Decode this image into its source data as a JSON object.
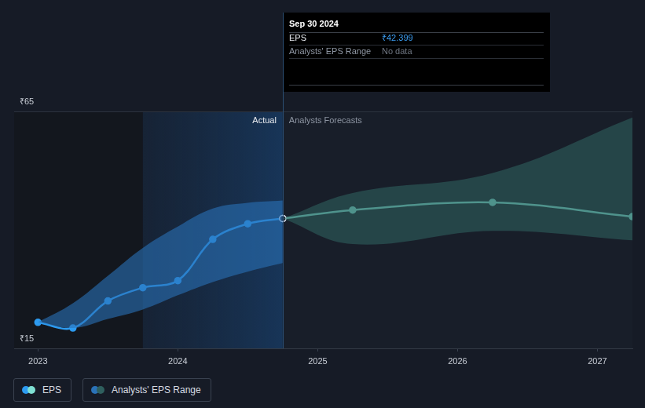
{
  "chart_data": {
    "type": "line",
    "xlim": [
      2022.83,
      2027.25
    ],
    "xticks": [
      2023,
      2024,
      2025,
      2026,
      2027
    ],
    "ylim": [
      15,
      65
    ],
    "yticks": [
      {
        "value": 15,
        "label": "₹15"
      },
      {
        "value": 65,
        "label": "₹65"
      }
    ],
    "grid": true,
    "legend": "bottom",
    "series": [
      {
        "name": "Analysts' EPS Range",
        "type": "range",
        "color": "#2a72b8",
        "x": [
          2023,
          2023.25,
          2023.5,
          2023.75,
          2024,
          2024.25,
          2024.5,
          2024.75
        ],
        "low": [
          20.5,
          19.3,
          21.2,
          23.2,
          26.2,
          29,
          31.2,
          33
        ],
        "high": [
          20.5,
          24.5,
          30.3,
          36.2,
          40.7,
          44.5,
          45.7,
          46.2
        ]
      },
      {
        "name": "Analysts' EPS Range",
        "type": "range",
        "color": "#2f5f5e",
        "x": [
          2024.75,
          2025.25,
          2026.25,
          2027.25
        ],
        "low": [
          42.399,
          37,
          39.8,
          37.8
        ],
        "high": [
          42.399,
          47.8,
          52,
          63.7
        ]
      },
      {
        "name": "EPS",
        "type": "line",
        "color": "#2d9bf0",
        "marker": "circle",
        "x": [
          2023,
          2023.25,
          2023.5,
          2023.75,
          2024,
          2024.25,
          2024.5,
          2024.75
        ],
        "values": [
          20.5,
          19.3,
          25,
          27.8,
          29.3,
          38,
          41.3,
          42.399
        ]
      },
      {
        "name": "EPS",
        "type": "line",
        "color": "#7fe0d3",
        "marker": "circle",
        "x": [
          2024.75,
          2025.25,
          2026.25,
          2027.25
        ],
        "values": [
          42.399,
          44.2,
          45.8,
          42.8
        ]
      }
    ],
    "highlight": [
      2023.75,
      2024.75
    ],
    "annotations": [
      {
        "text": "Actual",
        "x": 2024.75,
        "side": "left"
      },
      {
        "text": "Analysts Forecasts",
        "x": 2024.75,
        "side": "right"
      }
    ],
    "tooltip": {
      "title": "Sep 30 2024",
      "x": 2024.75,
      "rows": [
        {
          "label": "EPS",
          "value": "₹42.399"
        },
        {
          "label": "Analysts' EPS Range",
          "value": "No data"
        }
      ]
    }
  }
}
